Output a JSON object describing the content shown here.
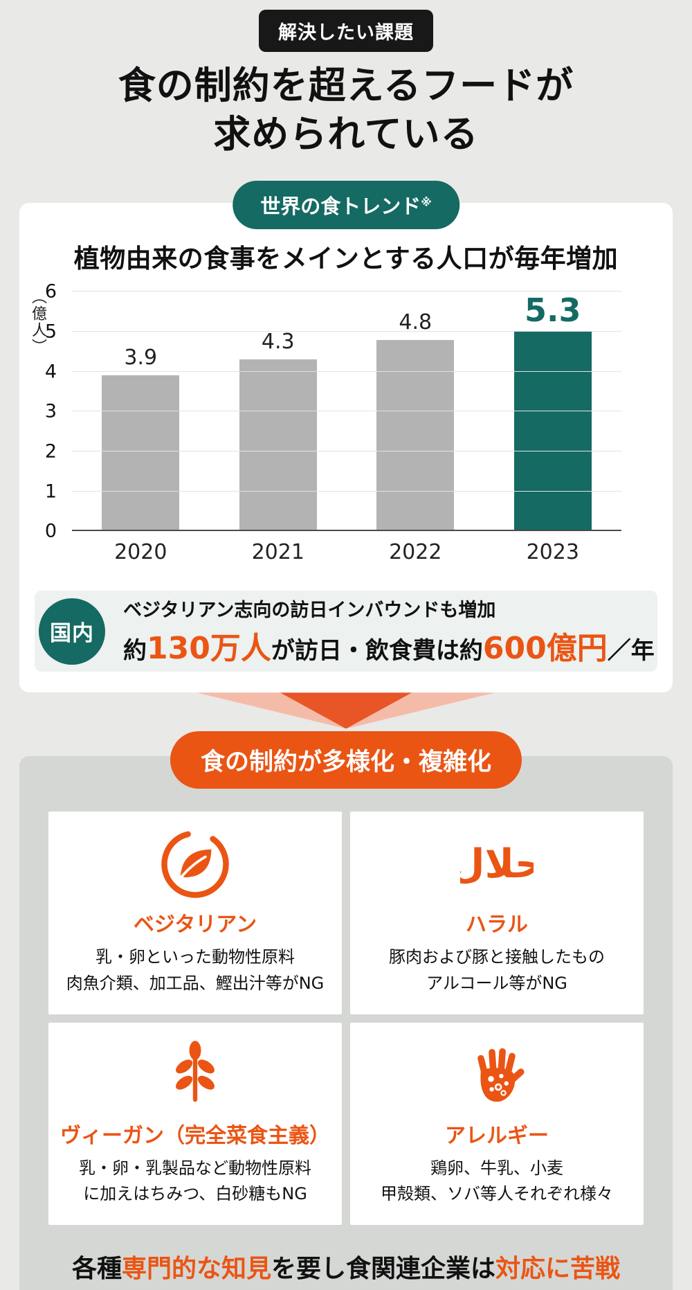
{
  "page": {
    "top_badge": "解決したい課題",
    "title_line1": "食の制約を超えるフードが",
    "title_line2": "求められている"
  },
  "trend_card": {
    "badge_text": "世界の食トレンド",
    "badge_note": "※",
    "chart_title": "植物由来の食事をメインとする人口が毎年増加",
    "y_axis_unit": "（億人）",
    "domestic": {
      "badge": "国内",
      "line1": "ベジタリアン志向の訪日インバウンドも増加",
      "line2": {
        "p1": "約",
        "p2": "130万人",
        "p3": "が訪日・飲食費は約",
        "p4": "600億円",
        "p5": "／年"
      }
    }
  },
  "chart_data": {
    "type": "bar",
    "title": "植物由来の食事をメインとする人口が毎年増加",
    "categories": [
      "2020",
      "2021",
      "2022",
      "2023"
    ],
    "values": [
      3.9,
      4.3,
      4.8,
      5.3
    ],
    "ylabel": "億人",
    "ylim": [
      0,
      6
    ],
    "yticks": [
      0,
      1,
      2,
      3,
      4,
      5,
      6
    ],
    "highlight_index": 3,
    "bar_color": "#b3b3b3",
    "highlight_color": "#156a63",
    "grid": true,
    "legend": false
  },
  "restrictions": {
    "badge": "食の制約が多様化・複雑化",
    "cards": [
      {
        "label": "ベジタリアン",
        "icon": "leaf-circle-icon",
        "line1": "乳・卵といった動物性原料",
        "line2": "肉魚介類、加工品、鰹出汁等がNG"
      },
      {
        "label": "ハラル",
        "icon": "halal-arabic-icon",
        "line1": "豚肉および豚と接触したもの",
        "line2": "アルコール等がNG"
      },
      {
        "label": "ヴィーガン（完全菜食主義）",
        "icon": "sprout-icon",
        "line1": "乳・卵・乳製品など動物性原料",
        "line2": "に加えはちみつ、白砂糖もNG"
      },
      {
        "label": "アレルギー",
        "icon": "allergy-hand-icon",
        "line1": "鶏卵、牛乳、小麦",
        "line2": "甲殻類、ソバ等人それぞれ様々"
      }
    ],
    "footer": {
      "p1": "各種",
      "p2": "専門的な知見",
      "p3": "を要し食関連企業は",
      "p4": "対応に苦戦"
    }
  },
  "colors": {
    "accent_orange": "#ea5514",
    "accent_teal": "#156a63",
    "page_bg": "#e9e9e7",
    "panel_gray": "#d5d7d4"
  }
}
